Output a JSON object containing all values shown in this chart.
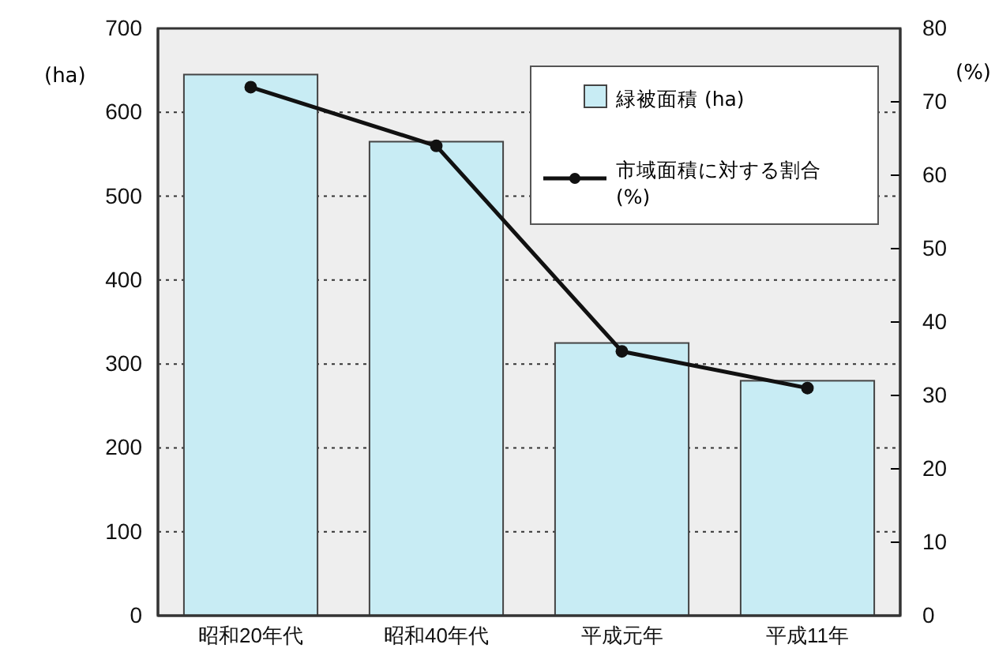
{
  "chart_data": {
    "type": "bar",
    "ylabel": "(ha)",
    "y2label": "(%)",
    "categories": [
      "昭和20年代",
      "昭和40年代",
      "平成元年",
      "平成11年"
    ],
    "series": [
      {
        "name": "緑被面積 (ha)",
        "color": "#c8ecf4",
        "values": [
          645,
          565,
          325,
          280
        ]
      },
      {
        "name": "市域面積に対する割合(%)",
        "type": "line",
        "axis": "y2",
        "color": "#111111",
        "values": [
          72,
          64,
          36,
          31
        ]
      }
    ],
    "ylim": [
      0,
      700
    ],
    "yticks": [
      0,
      100,
      200,
      300,
      400,
      500,
      600,
      700
    ],
    "y2lim": [
      0,
      80
    ],
    "y2ticks": [
      0,
      10,
      20,
      30,
      40,
      50,
      60,
      70,
      80
    ],
    "grid": "y",
    "legend": "top right",
    "marker": "circle",
    "line_style": "solid"
  }
}
